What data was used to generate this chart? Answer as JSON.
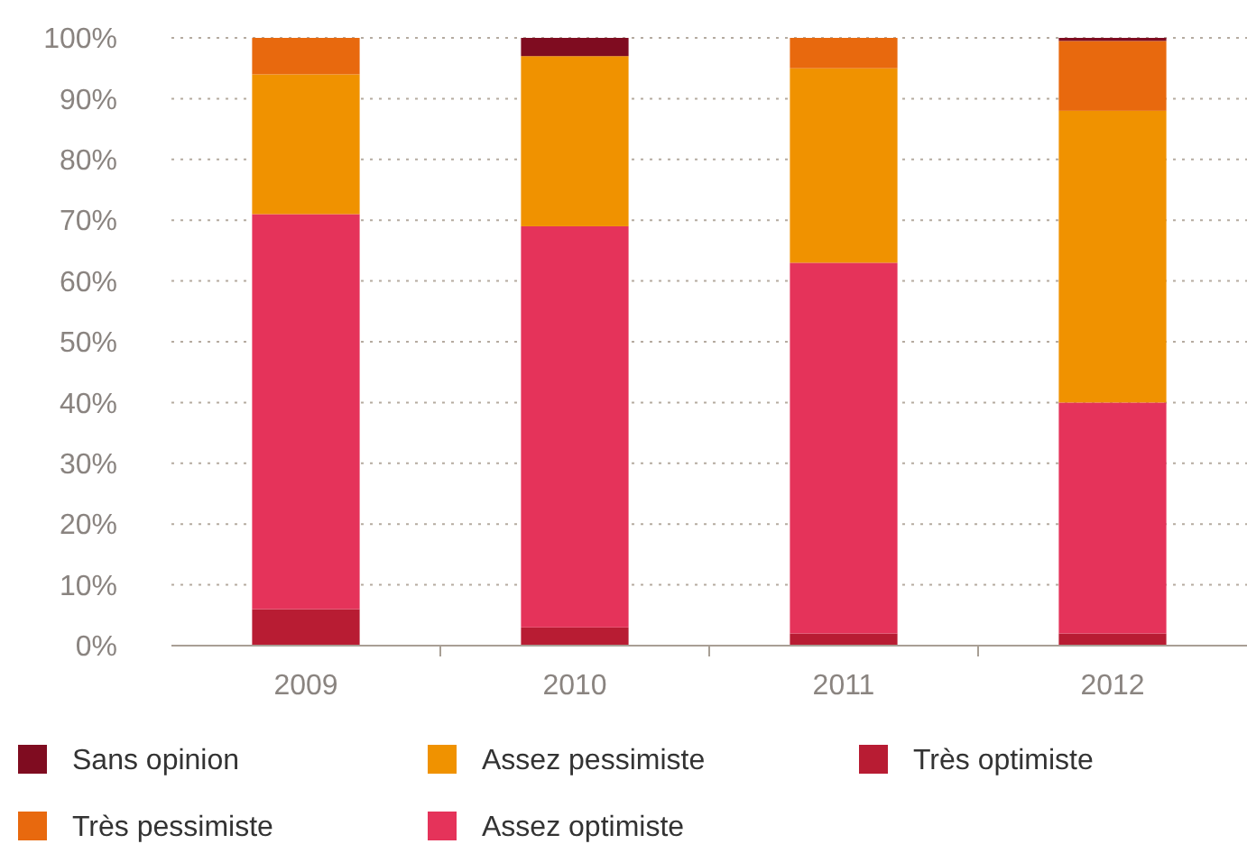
{
  "chart_data": {
    "type": "bar",
    "stacked": true,
    "categories": [
      "2009",
      "2010",
      "2011",
      "2012"
    ],
    "series": [
      {
        "name": "Très optimiste",
        "color": "#b81c33",
        "values": [
          6,
          3,
          2,
          2
        ]
      },
      {
        "name": "Assez optimiste",
        "color": "#e5335a",
        "values": [
          65,
          66,
          61,
          38
        ]
      },
      {
        "name": "Assez pessimiste",
        "color": "#f09200",
        "values": [
          23,
          28,
          32,
          48
        ]
      },
      {
        "name": "Très pessimiste",
        "color": "#e8690e",
        "values": [
          6,
          0,
          5,
          11.5
        ]
      },
      {
        "name": "Sans opinion",
        "color": "#7f0c20",
        "values": [
          0,
          3,
          0,
          0.5
        ]
      }
    ],
    "ylim": [
      0,
      100
    ],
    "yticks": [
      {
        "value": 0,
        "label": "0%"
      },
      {
        "value": 10,
        "label": "10%"
      },
      {
        "value": 20,
        "label": "20%"
      },
      {
        "value": 30,
        "label": "30%"
      },
      {
        "value": 40,
        "label": "40%"
      },
      {
        "value": 50,
        "label": "50%"
      },
      {
        "value": 60,
        "label": "60%"
      },
      {
        "value": 70,
        "label": "70%"
      },
      {
        "value": 80,
        "label": "80%"
      },
      {
        "value": 90,
        "label": "90%"
      },
      {
        "value": 100,
        "label": "100%"
      }
    ],
    "grid": "y",
    "legend": "bottom"
  }
}
